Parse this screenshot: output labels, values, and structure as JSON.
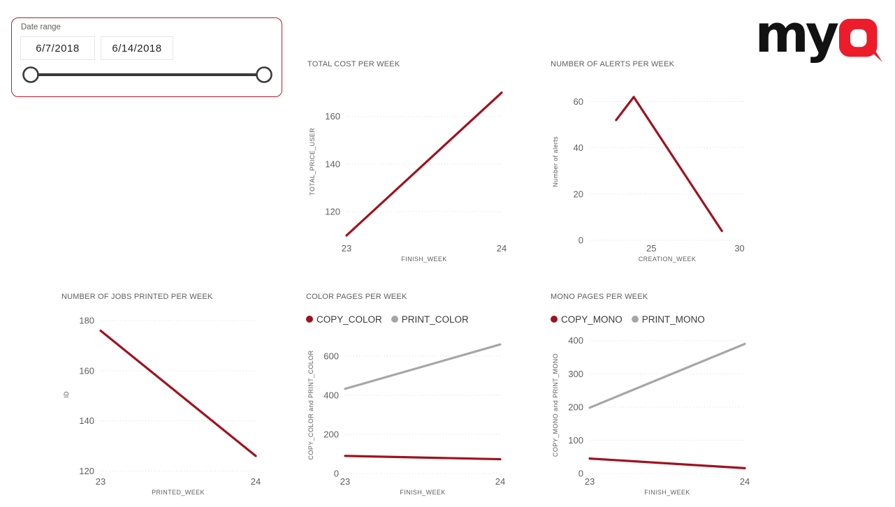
{
  "logo": {
    "prefix": "my",
    "suffix": "Q",
    "black": "#121212",
    "red": "#EC1C2B"
  },
  "slicer": {
    "label": "Date range",
    "start_date": "6/7/2018",
    "end_date": "6/14/2018",
    "border_color": "#C2182B",
    "slider_color": "#3B3A39"
  },
  "colors": {
    "series_red": "#A0121E",
    "series_gray": "#A6A6A6",
    "axis_text": "#605E5C",
    "legend_text": "#3B3A39",
    "gridline": "#D9D9D9"
  },
  "chart_data": [
    {
      "id": "total-cost",
      "type": "line",
      "title": "TOTAL COST PER WEEK",
      "xlabel": "FINISH_WEEK",
      "ylabel": "TOTAL_PRICE_USER",
      "xlim": [
        23,
        24
      ],
      "ylim": [
        108,
        174
      ],
      "x_ticks": [
        23,
        24
      ],
      "y_ticks": [
        120,
        140,
        160
      ],
      "grid": "horizontal-dotted",
      "legend": null,
      "series": [
        {
          "name": "TOTAL_PRICE_USER",
          "color": "#A0121E",
          "points": [
            [
              23,
              110
            ],
            [
              24,
              170
            ]
          ]
        }
      ]
    },
    {
      "id": "alerts",
      "type": "line",
      "title": "NUMBER OF ALERTS PER WEEK",
      "xlabel": "CREATION_WEEK",
      "ylabel": "Number of alerts",
      "xlim": [
        21.5,
        30.3
      ],
      "ylim": [
        0,
        68
      ],
      "x_ticks": [
        25,
        30
      ],
      "y_ticks": [
        0,
        20,
        40,
        60
      ],
      "grid": "horizontal-dotted",
      "legend": null,
      "series": [
        {
          "name": "Number of alerts",
          "color": "#A0121E",
          "points": [
            [
              23,
              52
            ],
            [
              24,
              62
            ],
            [
              29,
              4
            ]
          ]
        }
      ]
    },
    {
      "id": "jobs-printed",
      "type": "line",
      "title": "NUMBER OF JOBS PRINTED PER WEEK",
      "xlabel": "PRINTED_WEEK",
      "ylabel": "ID",
      "xlim": [
        23,
        24
      ],
      "ylim": [
        119,
        182
      ],
      "x_ticks": [
        23,
        24
      ],
      "y_ticks": [
        120,
        140,
        160,
        180
      ],
      "grid": "horizontal-dotted",
      "legend": null,
      "series": [
        {
          "name": "ID",
          "color": "#A0121E",
          "points": [
            [
              23,
              176
            ],
            [
              24,
              126
            ]
          ]
        }
      ]
    },
    {
      "id": "color-pages",
      "type": "line",
      "title": "COLOR PAGES PER WEEK",
      "xlabel": "FINISH_WEEK",
      "ylabel": "COPY_COLOR and PRINT_COLOR",
      "xlim": [
        23,
        24
      ],
      "ylim": [
        0,
        700
      ],
      "x_ticks": [
        23,
        24
      ],
      "y_ticks": [
        0,
        200,
        400,
        600
      ],
      "grid": "horizontal-dotted",
      "legend_position": "top",
      "legend": [
        {
          "name": "COPY_COLOR",
          "color": "#A0121E"
        },
        {
          "name": "PRINT_COLOR",
          "color": "#A6A6A6"
        }
      ],
      "series": [
        {
          "name": "COPY_COLOR",
          "color": "#A0121E",
          "points": [
            [
              23,
              90
            ],
            [
              24,
              73
            ]
          ]
        },
        {
          "name": "PRINT_COLOR",
          "color": "#A6A6A6",
          "points": [
            [
              23,
              433
            ],
            [
              24,
              660
            ]
          ]
        }
      ]
    },
    {
      "id": "mono-pages",
      "type": "line",
      "title": "MONO PAGES PER WEEK",
      "xlabel": "FINISH_WEEK",
      "ylabel": "COPY_MONO and PRINT_MONO",
      "xlim": [
        23,
        24
      ],
      "ylim": [
        0,
        412
      ],
      "x_ticks": [
        23,
        24
      ],
      "y_ticks": [
        0,
        100,
        200,
        300,
        400
      ],
      "grid": "horizontal-dotted",
      "legend_position": "top",
      "legend": [
        {
          "name": "COPY_MONO",
          "color": "#A0121E"
        },
        {
          "name": "PRINT_MONO",
          "color": "#A6A6A6"
        }
      ],
      "series": [
        {
          "name": "COPY_MONO",
          "color": "#A0121E",
          "points": [
            [
              23,
              45
            ],
            [
              24,
              16
            ]
          ]
        },
        {
          "name": "PRINT_MONO",
          "color": "#A6A6A6",
          "points": [
            [
              23,
              198
            ],
            [
              24,
              390
            ]
          ]
        }
      ]
    }
  ]
}
